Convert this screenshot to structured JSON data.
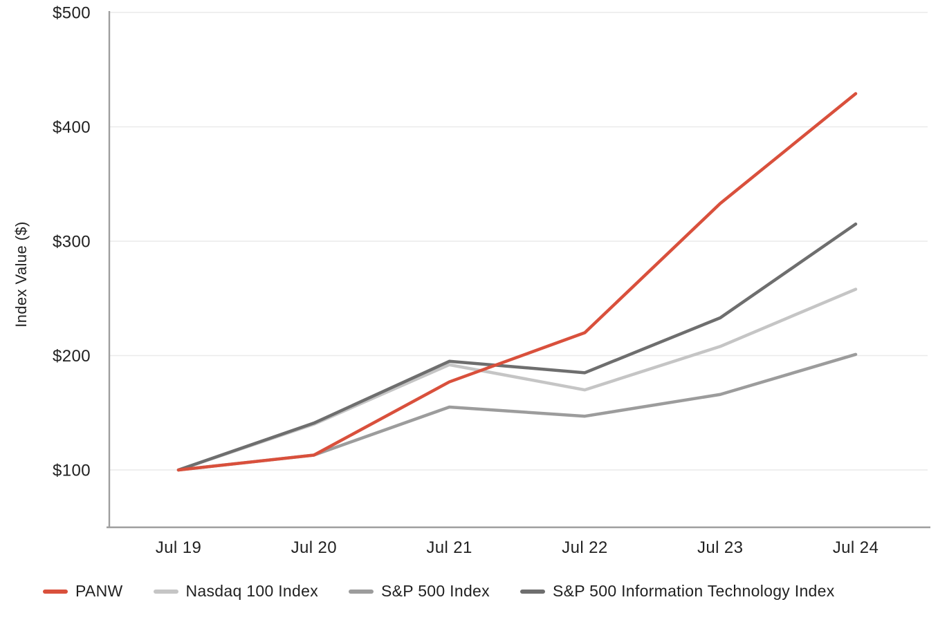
{
  "page": {
    "background": "#ffffff",
    "text_color": "#212121"
  },
  "chart_data": {
    "type": "line",
    "title": "",
    "ylabel": "Index Value ($)",
    "xlabel": "",
    "x_categories": [
      "Jul 19",
      "Jul 20",
      "Jul 21",
      "Jul 22",
      "Jul 23",
      "Jul 24"
    ],
    "y_ticks": [
      {
        "value": 100,
        "label": "$100"
      },
      {
        "value": 200,
        "label": "$200"
      },
      {
        "value": 300,
        "label": "$300"
      },
      {
        "value": 400,
        "label": "$400"
      },
      {
        "value": 500,
        "label": "$500"
      }
    ],
    "ylim": [
      50,
      500
    ],
    "grid": "horizontal",
    "gridline_color": "#EAEAEA",
    "axis_color": "#9E9E9E",
    "legend_position": "bottom-left",
    "series": [
      {
        "name": "PANW",
        "color": "#D9503C",
        "values": [
          100,
          113,
          177,
          220,
          333,
          429
        ]
      },
      {
        "name": "Nasdaq 100 Index",
        "color": "#C5C5C5",
        "values": [
          100,
          140,
          192,
          170,
          208,
          258
        ]
      },
      {
        "name": "S&P 500 Index",
        "color": "#9C9C9C",
        "values": [
          100,
          113,
          155,
          147,
          166,
          201
        ]
      },
      {
        "name": "S&P 500 Information Technology Index",
        "color": "#6E6E6E",
        "values": [
          100,
          141,
          195,
          185,
          233,
          315
        ]
      }
    ],
    "draw_order": [
      "Nasdaq 100 Index",
      "S&P 500 Index",
      "S&P 500 Information Technology Index",
      "PANW"
    ]
  }
}
